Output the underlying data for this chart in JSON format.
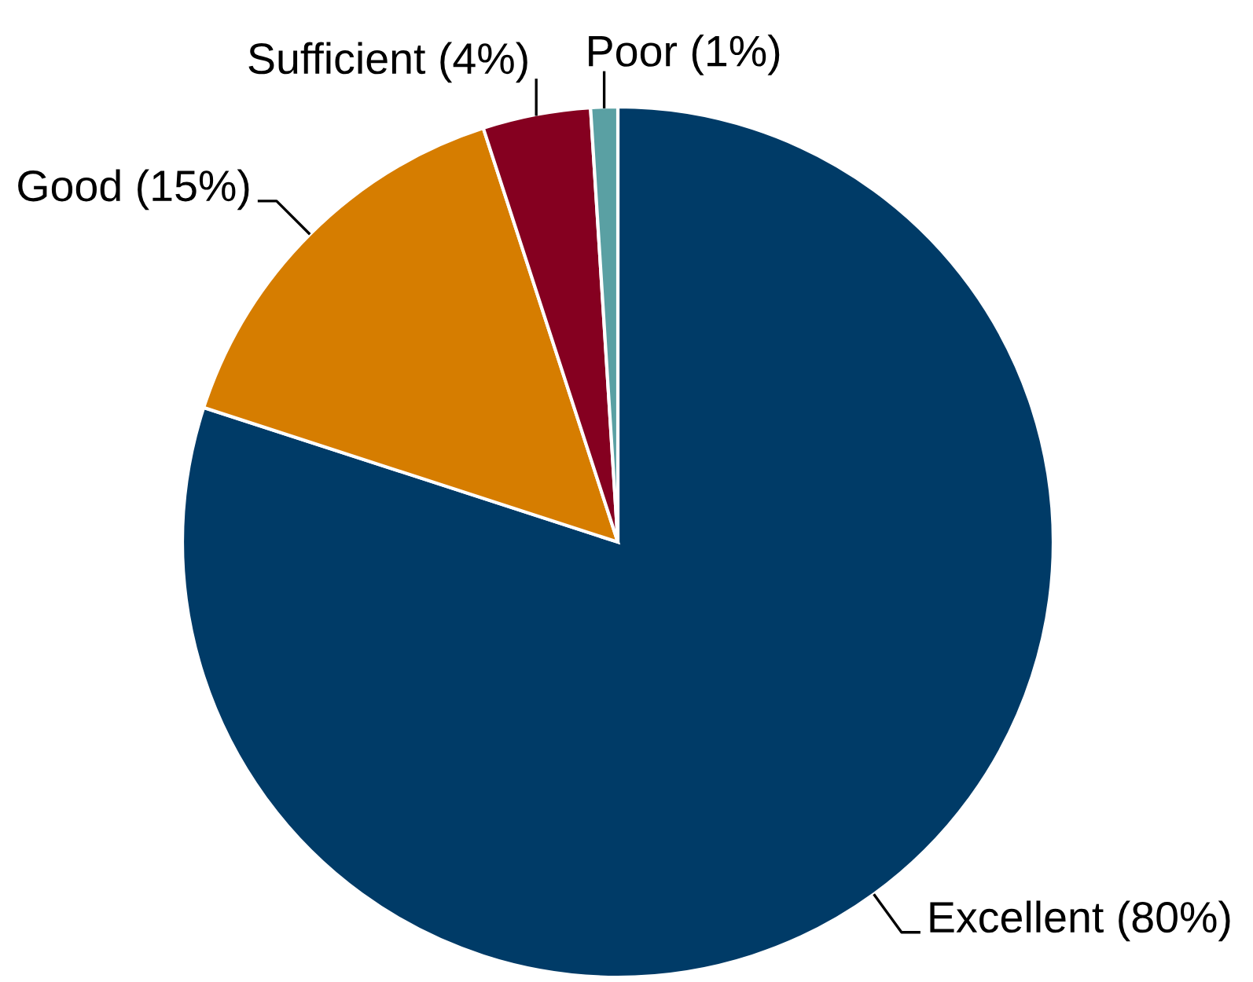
{
  "chart_data": {
    "type": "pie",
    "categories": [
      "Excellent",
      "Good",
      "Sufficient",
      "Poor"
    ],
    "values": [
      80,
      15,
      4,
      1
    ],
    "value_labels": [
      "(80%)",
      "(15%)",
      "(4%)",
      "(1%)"
    ],
    "colors": [
      "#003b67",
      "#d67d00",
      "#850020",
      "#5aa0a3"
    ]
  }
}
